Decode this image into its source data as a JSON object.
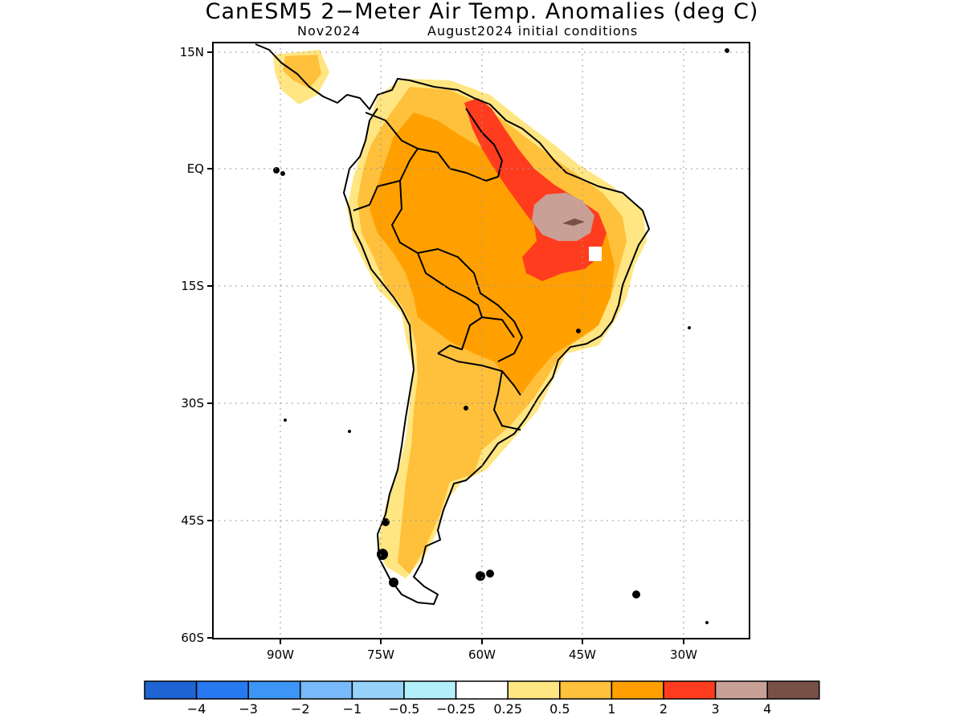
{
  "title": "CanESM5 2−Meter Air Temp. Anomalies (deg C)",
  "subtitle": {
    "valid_month": "Nov2024",
    "initial_conditions": "August2024 initial conditions"
  },
  "axes": {
    "lat_labels": [
      "15N",
      "EQ",
      "15S",
      "30S",
      "45S",
      "60S"
    ],
    "lon_labels": [
      "90W",
      "75W",
      "60W",
      "45W",
      "30W"
    ],
    "grid": "dotted"
  },
  "colorbar": {
    "colors": [
      "#1e64d2",
      "#2878f0",
      "#3c96f5",
      "#78b9fa",
      "#96d2fa",
      "#b4f0fa",
      "#ffffff",
      "#ffe682",
      "#ffc03c",
      "#ffa000",
      "#ff3c1e",
      "#c8a096",
      "#785046"
    ],
    "tick_labels": [
      "−4",
      "−3",
      "−2",
      "−1",
      "−0.5",
      "−0.25",
      "0.25",
      "0.5",
      "1",
      "2",
      "3",
      "4"
    ]
  }
}
